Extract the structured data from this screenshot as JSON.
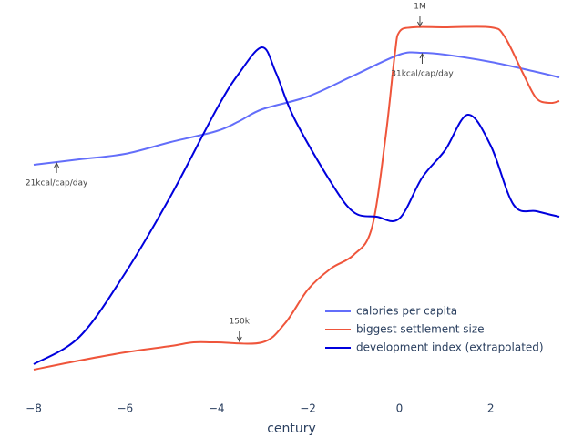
{
  "chart_data": {
    "type": "line",
    "x_label": "century",
    "xlim": [
      -8,
      3.5
    ],
    "ylim": [
      0,
      100
    ],
    "xticks": [
      {
        "value": -8,
        "label": "−8"
      },
      {
        "value": -6,
        "label": "−6"
      },
      {
        "value": -4,
        "label": "−4"
      },
      {
        "value": -2,
        "label": "−2"
      },
      0,
      2
    ],
    "series": [
      {
        "name": "calories per capita",
        "color": "#636efa",
        "x": [
          -8,
          -7,
          -6,
          -5,
          -4,
          -3.5,
          -3,
          -2,
          -1,
          0,
          0.5,
          1,
          2,
          3,
          3.5
        ],
        "values": [
          59.75,
          61.25,
          62.75,
          66,
          69,
          71.75,
          75,
          78.5,
          84.25,
          90,
          90.5,
          90,
          88,
          85.25,
          83.75
        ]
      },
      {
        "name": "biggest settlement size",
        "color": "#ef553b",
        "x": [
          -8,
          -7,
          -6,
          -5,
          -4.5,
          -4,
          -3,
          -2.5,
          -2,
          -1.5,
          -1,
          -0.6,
          -0.3,
          -0.1,
          0,
          0.3,
          1,
          2,
          2.3,
          2.7,
          3,
          3.3,
          3.5
        ],
        "values": [
          3.5,
          6,
          8.25,
          10,
          11,
          11,
          11,
          16.25,
          25.5,
          31.25,
          35,
          42.5,
          67.5,
          90,
          96.25,
          97.5,
          97.5,
          97.5,
          95,
          85,
          78,
          76.75,
          77.25
        ]
      },
      {
        "name": "development index (extrapolated)",
        "color": "#0000dd",
        "x": [
          -8,
          -7,
          -6,
          -5,
          -4,
          -3.5,
          -3,
          -2.7,
          -2.3,
          -1.5,
          -1,
          -0.5,
          0,
          0.5,
          1,
          1.5,
          2,
          2.5,
          3,
          3.5
        ],
        "values": [
          5,
          12.5,
          30,
          51.25,
          75,
          85,
          92,
          85,
          72.5,
          55,
          46.75,
          45.5,
          45,
          56.25,
          63.75,
          73.5,
          65,
          48.75,
          47,
          45.5
        ]
      }
    ],
    "annotations": [
      {
        "text": "1M",
        "x": 0.45,
        "y": 97.5
      },
      {
        "text": "31kcal/cap/day",
        "x": 0.5,
        "y": 90.5
      },
      {
        "text": "21kcal/cap/day",
        "x": -7.5,
        "y": 60.5
      },
      {
        "text": "150k",
        "x": -3.5,
        "y": 11
      }
    ]
  }
}
